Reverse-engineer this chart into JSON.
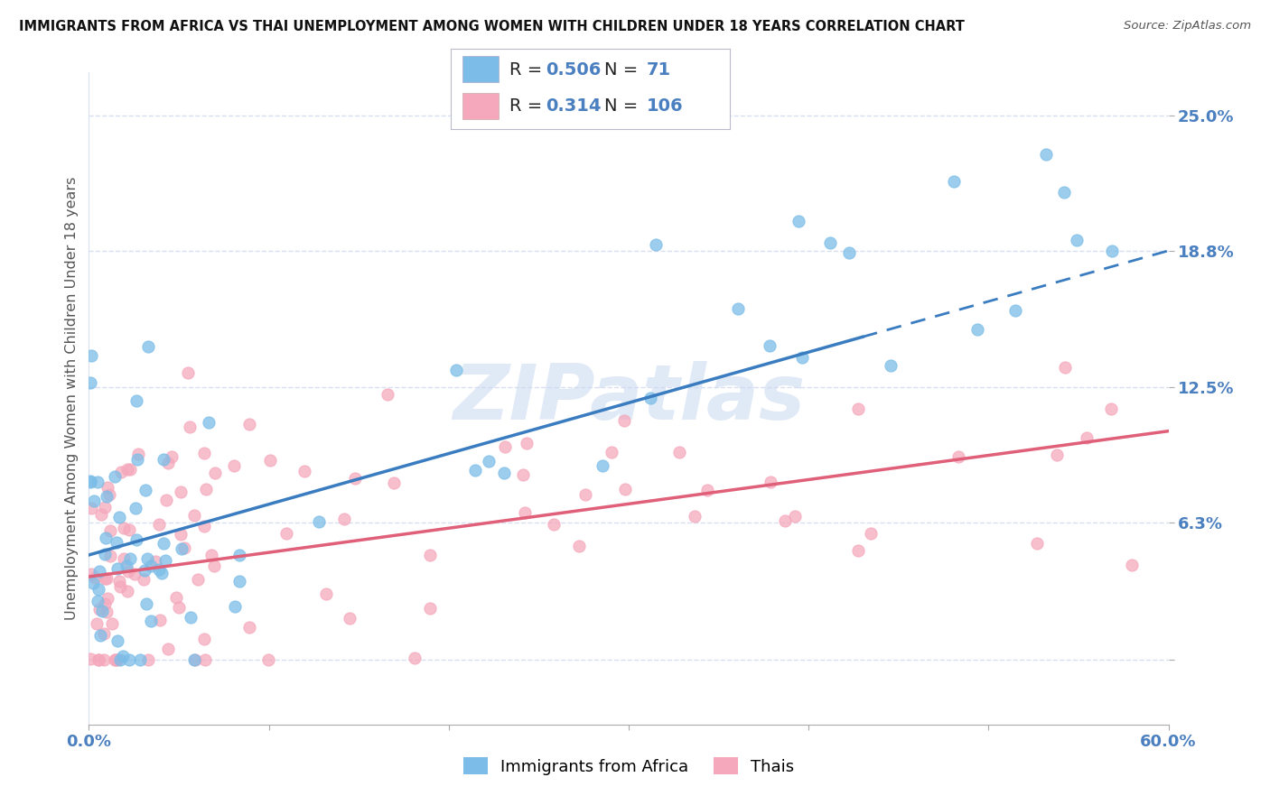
{
  "title": "IMMIGRANTS FROM AFRICA VS THAI UNEMPLOYMENT AMONG WOMEN WITH CHILDREN UNDER 18 YEARS CORRELATION CHART",
  "source": "Source: ZipAtlas.com",
  "ylabel": "Unemployment Among Women with Children Under 18 years",
  "xlim": [
    0.0,
    0.6
  ],
  "ylim": [
    -0.03,
    0.27
  ],
  "yticks": [
    0.0,
    0.063,
    0.125,
    0.188,
    0.25
  ],
  "ytick_labels": [
    "",
    "6.3%",
    "12.5%",
    "18.8%",
    "25.0%"
  ],
  "xticks": [
    0.0,
    0.1,
    0.2,
    0.3,
    0.4,
    0.5,
    0.6
  ],
  "xtick_labels": [
    "0.0%",
    "",
    "",
    "",
    "",
    "",
    "60.0%"
  ],
  "series1_name": "Immigrants from Africa",
  "series1_R": 0.506,
  "series1_N": 71,
  "series1_color": "#7bbde8",
  "series1_edge_color": "#7bbde8",
  "series1_trend_color": "#3a7cc0",
  "series1_trend_solid_end": 0.43,
  "series2_name": "Thais",
  "series2_R": 0.314,
  "series2_N": 106,
  "series2_color": "#f5a8bc",
  "series2_edge_color": "#f5a8bc",
  "series2_trend_color": "#e0607a",
  "watermark": "ZIPatlas",
  "watermark_color": "#c8d8f0",
  "grid_color": "#d8dff0",
  "label_color": "#4a7fc0",
  "background_color": "#ffffff",
  "trend1_x0": 0.0,
  "trend1_y0": 0.048,
  "trend1_x1": 0.6,
  "trend1_y1": 0.188,
  "trend1_solid_end": 0.43,
  "trend2_x0": 0.0,
  "trend2_y0": 0.038,
  "trend2_x1": 0.6,
  "trend2_y1": 0.105
}
